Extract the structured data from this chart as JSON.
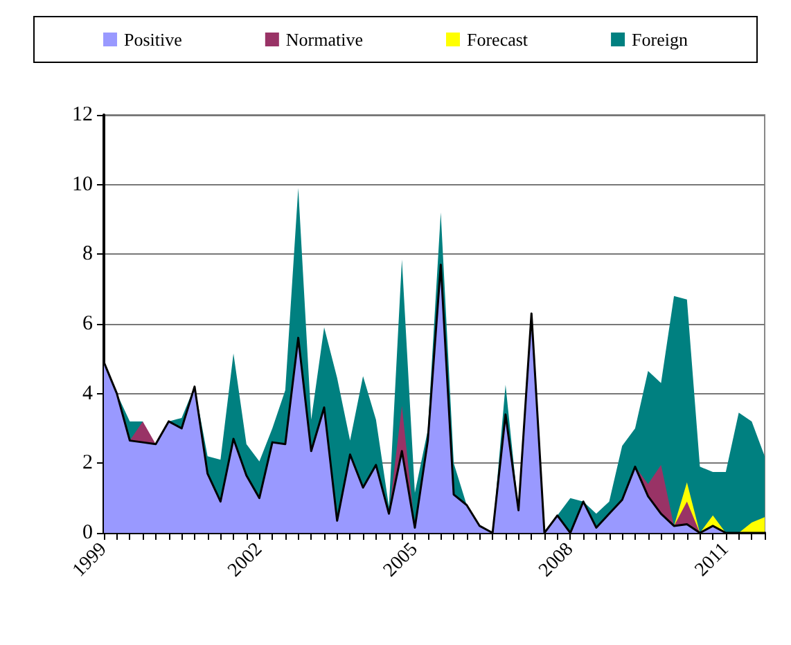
{
  "chart_data": {
    "type": "area",
    "stacked": true,
    "legend": "top",
    "grid": "y",
    "categories": [
      "1999",
      null,
      null,
      null,
      null,
      null,
      null,
      null,
      null,
      null,
      null,
      null,
      "2002",
      null,
      null,
      null,
      null,
      null,
      null,
      null,
      null,
      null,
      null,
      null,
      "2005",
      null,
      null,
      null,
      null,
      null,
      null,
      null,
      null,
      null,
      null,
      null,
      "2008",
      null,
      null,
      null,
      null,
      null,
      null,
      null,
      null,
      null,
      null,
      null,
      "2011",
      null,
      null,
      null
    ],
    "ylim": [
      0,
      12
    ],
    "yticks": [
      0,
      2,
      4,
      6,
      8,
      10,
      12
    ],
    "series": [
      {
        "name": "Positive",
        "color": "#9999ff",
        "values": [
          4.9,
          4.0,
          2.65,
          2.6,
          2.55,
          3.2,
          3.0,
          4.2,
          1.7,
          0.9,
          2.7,
          1.65,
          1.0,
          2.6,
          2.55,
          5.6,
          2.35,
          3.6,
          0.35,
          2.25,
          1.3,
          1.95,
          0.55,
          2.35,
          0.15,
          2.65,
          7.7,
          1.1,
          0.8,
          0.2,
          0,
          3.4,
          0.65,
          6.3,
          0,
          0.5,
          0,
          0.9,
          0.15,
          0.55,
          0.95,
          1.9,
          1.05,
          0.55,
          0.2,
          0.25,
          0,
          0.2,
          0,
          0,
          0,
          0
        ]
      },
      {
        "name": "Normative",
        "color": "#993366",
        "values": [
          null,
          null,
          0,
          0.6,
          0,
          null,
          null,
          null,
          null,
          null,
          null,
          null,
          null,
          null,
          null,
          null,
          null,
          null,
          null,
          null,
          null,
          null,
          0,
          1.3,
          0,
          null,
          null,
          null,
          null,
          null,
          null,
          null,
          null,
          null,
          null,
          null,
          null,
          null,
          null,
          null,
          null,
          0,
          0.35,
          1.4,
          0,
          0.65,
          0,
          null,
          null,
          null,
          null,
          null
        ]
      },
      {
        "name": "Forecast",
        "color": "#ffff00",
        "values": [
          null,
          null,
          null,
          null,
          null,
          null,
          null,
          null,
          null,
          null,
          null,
          null,
          null,
          null,
          null,
          null,
          null,
          null,
          null,
          null,
          null,
          null,
          null,
          null,
          null,
          null,
          null,
          null,
          null,
          null,
          null,
          null,
          null,
          null,
          null,
          null,
          null,
          null,
          null,
          null,
          null,
          null,
          null,
          null,
          0,
          0.55,
          0,
          0.3,
          0,
          0,
          0.3,
          0.45
        ]
      },
      {
        "name": "Foreign",
        "color": "#008080",
        "values": [
          null,
          0,
          0.55,
          0,
          null,
          0,
          0.3,
          0,
          0.5,
          1.2,
          2.45,
          0.9,
          1.05,
          0.4,
          1.55,
          4.3,
          0.9,
          2.3,
          4.1,
          0.4,
          3.2,
          1.3,
          0.2,
          4.2,
          1.0,
          0.3,
          1.5,
          0.9,
          0,
          null,
          0,
          0.85,
          0,
          null,
          null,
          0,
          1.0,
          0,
          0.4,
          0.35,
          1.55,
          1.1,
          3.25,
          2.35,
          6.6,
          5.25,
          1.9,
          1.25,
          1.75,
          3.45,
          2.9,
          1.75
        ]
      }
    ]
  }
}
